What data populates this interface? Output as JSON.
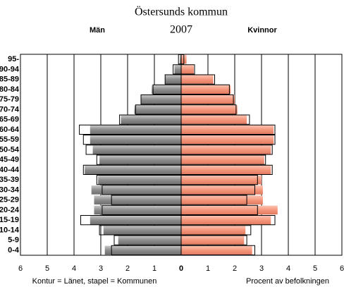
{
  "chart_data": {
    "type": "pyramid",
    "title": "Östersunds kommun",
    "subtitle": "2007",
    "left_label": "Män",
    "right_label": "Kvinnor",
    "footer_left": "Kontur = Länet, stapel = Kommunen",
    "x_label": "Procent av befolkningen",
    "categories": [
      "0-4",
      "5-9",
      "10-14",
      "15-19",
      "20-24",
      "25-29",
      "30-34",
      "35-39",
      "40-44",
      "45-49",
      "50-54",
      "55-59",
      "60-64",
      "65-69",
      "70-74",
      "75-79",
      "80-84",
      "85-89",
      "90-94",
      "95-"
    ],
    "series": [
      {
        "name": "Män",
        "color": "#a0a0a0",
        "values": [
          2.85,
          2.35,
          2.9,
          3.4,
          3.25,
          3.25,
          3.35,
          3.1,
          3.6,
          3.05,
          3.3,
          3.4,
          3.4,
          2.25,
          1.75,
          1.5,
          1.1,
          0.6,
          0.25,
          0.05
        ],
        "outline_values": [
          2.6,
          2.5,
          3.05,
          3.75,
          2.95,
          2.6,
          2.95,
          3.15,
          3.65,
          3.15,
          3.55,
          3.65,
          3.8,
          2.3,
          1.7,
          1.5,
          1.05,
          0.6,
          0.3,
          0.1
        ]
      },
      {
        "name": "Kvinnor",
        "color": "#f5a088",
        "values": [
          2.65,
          2.35,
          2.4,
          3.35,
          3.6,
          3.05,
          3.05,
          3.0,
          3.35,
          3.1,
          3.35,
          3.45,
          3.45,
          2.45,
          2.1,
          2.0,
          1.85,
          1.2,
          0.47,
          0.2
        ],
        "outline_values": [
          2.75,
          2.45,
          2.6,
          3.5,
          2.85,
          2.45,
          2.75,
          2.85,
          3.4,
          3.15,
          3.4,
          3.5,
          3.5,
          2.55,
          2.05,
          1.95,
          1.8,
          1.25,
          0.5,
          0.1
        ]
      }
    ],
    "xlim": [
      -6,
      6
    ],
    "xticks": [
      {
        "value": -6,
        "label": "6"
      },
      {
        "value": -5,
        "label": "5"
      },
      {
        "value": -4,
        "label": "4"
      },
      {
        "value": -3,
        "label": "3"
      },
      {
        "value": -2,
        "label": "2"
      },
      {
        "value": -1,
        "label": "1"
      },
      0,
      1,
      2,
      3,
      4,
      5,
      6
    ],
    "outline_color": "#000000",
    "grid": true
  }
}
